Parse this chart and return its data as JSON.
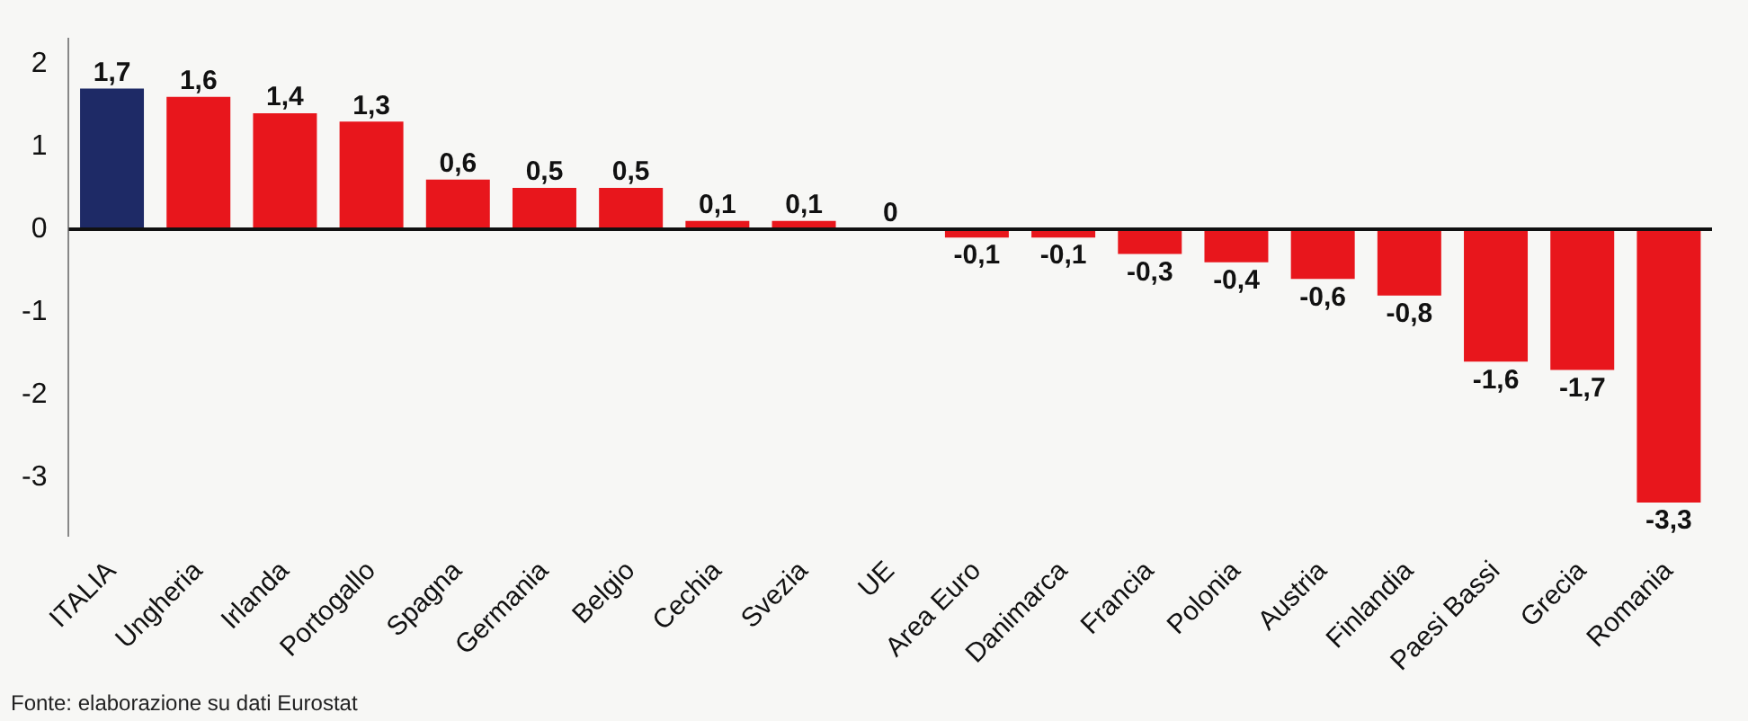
{
  "chart_data": {
    "type": "bar",
    "categories": [
      "ITALIA",
      "Ungheria",
      "Irlanda",
      "Portogallo",
      "Spagna",
      "Germania",
      "Belgio",
      "Cechia",
      "Svezia",
      "UE",
      "Area Euro",
      "Danimarca",
      "Francia",
      "Polonia",
      "Austria",
      "Finlandia",
      "Paesi Bassi",
      "Grecia",
      "Romania"
    ],
    "values": [
      1.7,
      1.6,
      1.4,
      1.3,
      0.6,
      0.5,
      0.5,
      0.1,
      0.1,
      0,
      -0.1,
      -0.1,
      -0.3,
      -0.4,
      -0.6,
      -0.8,
      -1.6,
      -1.7,
      -3.3
    ],
    "colors": [
      "#1e2a66",
      "#e8161c",
      "#e8161c",
      "#e8161c",
      "#e8161c",
      "#e8161c",
      "#e8161c",
      "#e8161c",
      "#e8161c",
      "#e8161c",
      "#e8161c",
      "#e8161c",
      "#e8161c",
      "#e8161c",
      "#e8161c",
      "#e8161c",
      "#e8161c",
      "#e8161c",
      "#e8161c"
    ],
    "value_labels": [
      "1,7",
      "1,6",
      "1,4",
      "1,3",
      "0,6",
      "0,5",
      "0,5",
      "0,1",
      "0,1",
      "0",
      "-0,1",
      "-0,1",
      "-0,3",
      "-0,4",
      "-0,6",
      "-0,8",
      "-1,6",
      "-1,7",
      "-3,3"
    ],
    "ylim": [
      -3.7,
      2.3
    ],
    "yticks": [
      -3,
      -2,
      -1,
      0,
      1,
      2
    ],
    "grid": false,
    "legend": false,
    "ref_lines": [
      {
        "axis": "y",
        "value": 0,
        "color": "#111111"
      }
    ],
    "annotations": [
      "Fonte: elaborazione su dati Eurostat"
    ]
  }
}
